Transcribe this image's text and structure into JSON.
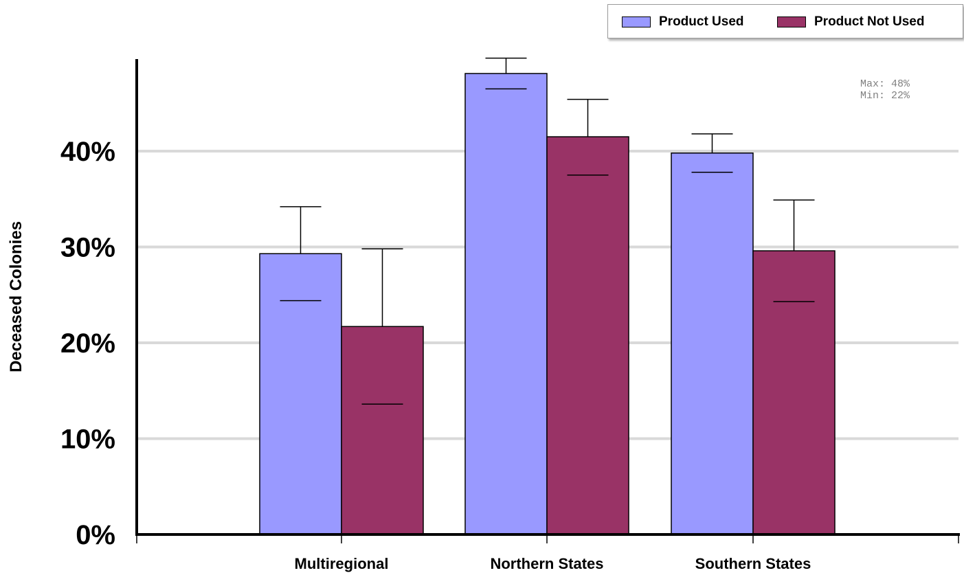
{
  "chart_data": {
    "type": "bar",
    "categories": [
      "Multiregional",
      "Northern States",
      "Southern States"
    ],
    "series": [
      {
        "name": "Product Used",
        "color": "#9999ff",
        "values": [
          29.3,
          48.1,
          39.8
        ],
        "error_upper": [
          34.2,
          49.7,
          41.8
        ],
        "error_lower": [
          24.4,
          46.5,
          37.8
        ]
      },
      {
        "name": "Product Not Used",
        "color": "#993366",
        "values": [
          21.7,
          41.5,
          29.6
        ],
        "error_upper": [
          29.8,
          45.4,
          34.9
        ],
        "error_lower": [
          13.6,
          37.5,
          24.3
        ]
      }
    ],
    "ylabel": "Deceased Colonies",
    "xlabel": "",
    "ylim": [
      0,
      50
    ],
    "yticks": [
      0,
      10,
      20,
      30,
      40
    ],
    "ytick_labels": [
      "0%",
      "10%",
      "20%",
      "30%",
      "40%"
    ],
    "grid": true,
    "legend_position": "top-right",
    "annotation": {
      "max_label": "Max: 48%",
      "min_label": "Min: 22%"
    }
  }
}
